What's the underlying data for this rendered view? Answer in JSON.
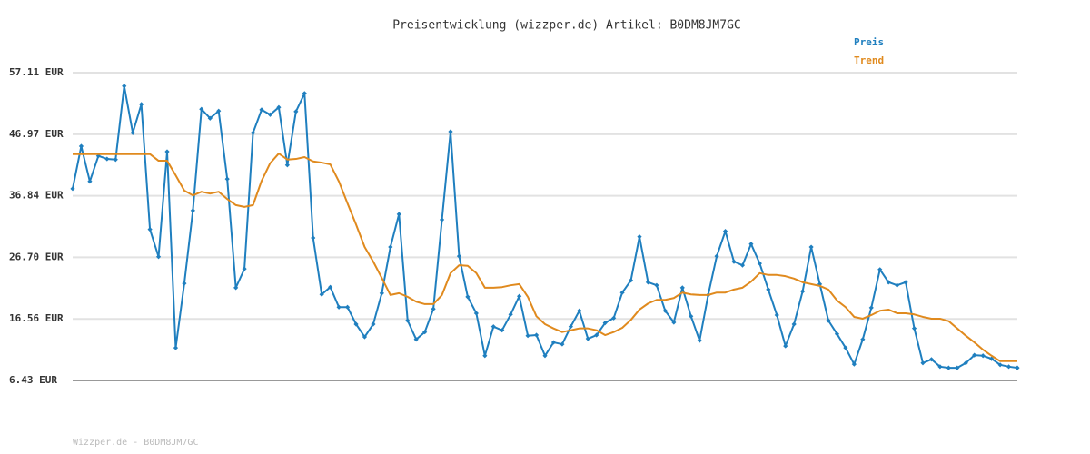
{
  "chart_data": {
    "type": "line",
    "title": "Preisentwicklung (wizzper.de) Artikel: B0DM8JM7GC",
    "footer": "Wizzper.de - B0DM8JM7GC",
    "ylim": [
      6.43,
      57.11
    ],
    "yticks": [
      {
        "value": 6.43,
        "label": "6.43 EUR"
      },
      {
        "value": 16.56,
        "label": "16.56 EUR"
      },
      {
        "value": 26.7,
        "label": "26.70 EUR"
      },
      {
        "value": 36.84,
        "label": "36.84 EUR"
      },
      {
        "value": 46.97,
        "label": "46.97 EUR"
      },
      {
        "value": 57.11,
        "label": "57.11 EUR"
      }
    ],
    "grid": true,
    "series": [
      {
        "name": "Preis",
        "color": "#1f7fbf",
        "markers": true,
        "values": [
          38.0,
          45.0,
          39.2,
          43.4,
          42.9,
          42.8,
          54.9,
          47.2,
          51.9,
          31.3,
          26.8,
          44.1,
          11.8,
          22.4,
          34.4,
          51.1,
          49.6,
          50.8,
          39.6,
          21.7,
          24.8,
          47.2,
          51.0,
          50.2,
          51.4,
          41.9,
          50.7,
          53.7,
          29.9,
          20.6,
          21.8,
          18.5,
          18.5,
          15.7,
          13.6,
          15.7,
          20.8,
          28.4,
          33.8,
          16.3,
          13.2,
          14.4,
          18.2,
          32.9,
          47.4,
          26.9,
          20.2,
          17.5,
          10.5,
          15.3,
          14.7,
          17.3,
          20.3,
          13.8,
          13.9,
          10.5,
          12.7,
          12.4,
          15.3,
          17.9,
          13.3,
          13.9,
          15.9,
          16.7,
          20.9,
          22.9,
          30.1,
          22.6,
          22.1,
          17.9,
          16.0,
          21.7,
          17.0,
          13.0,
          20.5,
          26.9,
          31.0,
          26.0,
          25.4,
          28.9,
          25.7,
          21.4,
          17.2,
          12.1,
          15.7,
          21.1,
          28.4,
          22.3,
          16.3,
          14.1,
          11.8,
          9.1,
          13.2,
          18.4,
          24.7,
          22.6,
          22.1,
          22.6,
          15.0,
          9.3,
          9.9,
          8.7,
          8.5,
          8.5,
          9.3,
          10.6,
          10.5,
          10.0,
          9.0,
          8.7,
          8.5
        ]
      },
      {
        "name": "Trend",
        "color": "#e08a1e",
        "markers": false,
        "values": [
          43.7,
          43.7,
          43.7,
          43.7,
          43.7,
          43.7,
          43.7,
          43.7,
          43.7,
          43.7,
          42.6,
          42.6,
          40.2,
          37.7,
          36.9,
          37.5,
          37.2,
          37.5,
          36.3,
          35.3,
          35.0,
          35.3,
          39.3,
          42.2,
          43.8,
          42.8,
          42.9,
          43.2,
          42.5,
          42.3,
          42.0,
          39.2,
          35.6,
          32.1,
          28.4,
          26.0,
          23.3,
          20.5,
          20.8,
          20.2,
          19.4,
          19.0,
          19.0,
          20.5,
          24.1,
          25.4,
          25.3,
          24.1,
          21.7,
          21.7,
          21.8,
          22.1,
          22.3,
          20.2,
          17.0,
          15.7,
          15.0,
          14.4,
          14.7,
          15.0,
          15.0,
          14.7,
          13.9,
          14.4,
          15.1,
          16.4,
          18.1,
          19.1,
          19.7,
          19.7,
          20.0,
          20.9,
          20.6,
          20.5,
          20.5,
          20.9,
          20.9,
          21.4,
          21.7,
          22.7,
          24.1,
          23.8,
          23.8,
          23.6,
          23.2,
          22.6,
          22.3,
          22.0,
          21.4,
          19.6,
          18.5,
          16.9,
          16.6,
          17.2,
          17.9,
          18.1,
          17.5,
          17.5,
          17.3,
          16.9,
          16.6,
          16.6,
          16.2,
          15.0,
          13.8,
          12.7,
          11.5,
          10.5,
          9.6,
          9.6,
          9.6
        ]
      }
    ]
  }
}
